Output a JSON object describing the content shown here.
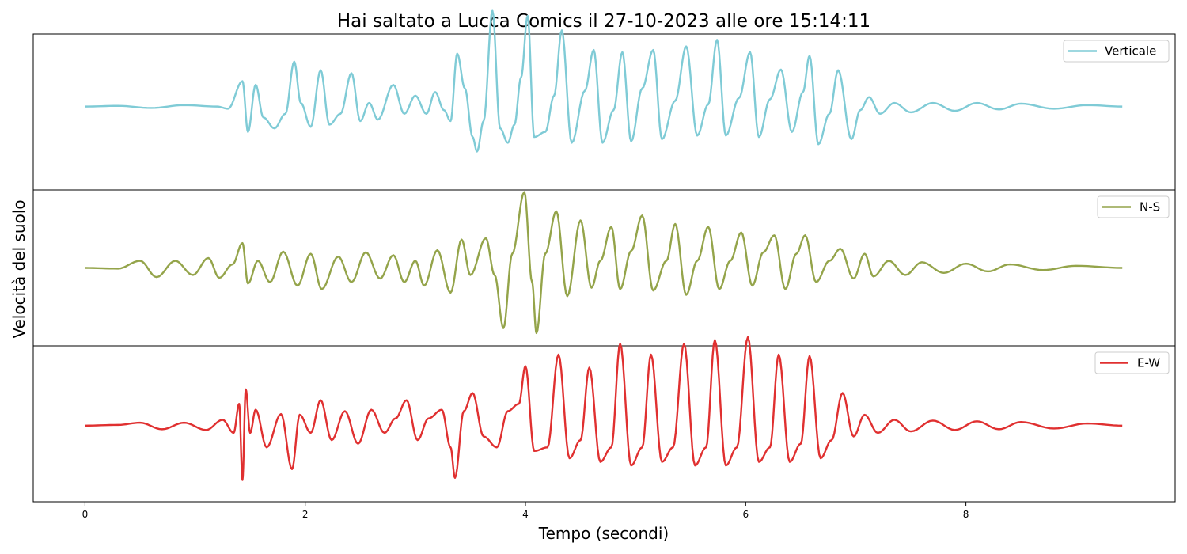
{
  "chart_data": {
    "type": "line",
    "title": "Hai saltato a Lucca Comics il 27-10-2023 alle ore 15:14:11",
    "xlabel": "Tempo (secondi)",
    "ylabel": "Velocità del suolo",
    "xlim": [
      -0.47,
      9.9
    ],
    "xticks": [
      0,
      2,
      4,
      6,
      8
    ],
    "xtick_labels": [
      "0",
      "2",
      "4",
      "6",
      "8"
    ],
    "grid": false,
    "legend_position": "top-right",
    "panels": [
      {
        "name": "Verticale",
        "color": "#7fcbd6",
        "ylim": [
          -1.15,
          1.0
        ],
        "peaks": [
          [
            0.0,
            0.0
          ],
          [
            0.3,
            0.01
          ],
          [
            0.6,
            -0.02
          ],
          [
            0.9,
            0.02
          ],
          [
            1.2,
            0.0
          ],
          [
            1.3,
            -0.03
          ],
          [
            1.43,
            0.35
          ],
          [
            1.48,
            -0.35
          ],
          [
            1.55,
            0.3
          ],
          [
            1.62,
            -0.15
          ],
          [
            1.72,
            -0.3
          ],
          [
            1.82,
            -0.1
          ],
          [
            1.9,
            0.62
          ],
          [
            1.96,
            0.05
          ],
          [
            2.05,
            -0.28
          ],
          [
            2.14,
            0.5
          ],
          [
            2.22,
            -0.25
          ],
          [
            2.32,
            -0.1
          ],
          [
            2.42,
            0.46
          ],
          [
            2.5,
            -0.2
          ],
          [
            2.58,
            0.05
          ],
          [
            2.66,
            -0.18
          ],
          [
            2.8,
            0.3
          ],
          [
            2.9,
            -0.1
          ],
          [
            3.0,
            0.15
          ],
          [
            3.1,
            -0.1
          ],
          [
            3.18,
            0.2
          ],
          [
            3.26,
            -0.05
          ],
          [
            3.32,
            -0.2
          ],
          [
            3.38,
            0.73
          ],
          [
            3.45,
            0.25
          ],
          [
            3.52,
            -0.42
          ],
          [
            3.56,
            -0.62
          ],
          [
            3.62,
            -0.2
          ],
          [
            3.7,
            1.32
          ],
          [
            3.77,
            -0.3
          ],
          [
            3.84,
            -0.5
          ],
          [
            3.9,
            -0.25
          ],
          [
            3.96,
            0.4
          ],
          [
            4.02,
            1.25
          ],
          [
            4.08,
            -0.42
          ],
          [
            4.18,
            -0.35
          ],
          [
            4.26,
            0.15
          ],
          [
            4.33,
            1.05
          ],
          [
            4.42,
            -0.5
          ],
          [
            4.54,
            0.22
          ],
          [
            4.62,
            0.78
          ],
          [
            4.7,
            -0.5
          ],
          [
            4.8,
            -0.05
          ],
          [
            4.88,
            0.75
          ],
          [
            4.96,
            -0.48
          ],
          [
            5.06,
            0.25
          ],
          [
            5.16,
            0.78
          ],
          [
            5.24,
            -0.45
          ],
          [
            5.36,
            0.08
          ],
          [
            5.46,
            0.83
          ],
          [
            5.56,
            -0.4
          ],
          [
            5.66,
            0.03
          ],
          [
            5.74,
            0.92
          ],
          [
            5.82,
            -0.4
          ],
          [
            5.94,
            0.12
          ],
          [
            6.04,
            0.75
          ],
          [
            6.12,
            -0.42
          ],
          [
            6.22,
            0.1
          ],
          [
            6.32,
            0.51
          ],
          [
            6.42,
            -0.35
          ],
          [
            6.52,
            0.2
          ],
          [
            6.58,
            0.7
          ],
          [
            6.66,
            -0.52
          ],
          [
            6.76,
            -0.1
          ],
          [
            6.84,
            0.5
          ],
          [
            6.96,
            -0.45
          ],
          [
            7.04,
            -0.05
          ],
          [
            7.12,
            0.13
          ],
          [
            7.22,
            -0.1
          ],
          [
            7.35,
            0.05
          ],
          [
            7.5,
            -0.08
          ],
          [
            7.7,
            0.05
          ],
          [
            7.9,
            -0.06
          ],
          [
            8.1,
            0.05
          ],
          [
            8.3,
            -0.04
          ],
          [
            8.5,
            0.04
          ],
          [
            8.8,
            -0.03
          ],
          [
            9.1,
            0.02
          ],
          [
            9.42,
            0.0
          ]
        ]
      },
      {
        "name": "N-S",
        "color": "#94a44a",
        "ylim": [
          -1.1,
          1.1
        ],
        "peaks": [
          [
            0.0,
            0.0
          ],
          [
            0.3,
            -0.01
          ],
          [
            0.5,
            0.1
          ],
          [
            0.65,
            -0.13
          ],
          [
            0.82,
            0.1
          ],
          [
            0.98,
            -0.1
          ],
          [
            1.12,
            0.14
          ],
          [
            1.22,
            -0.14
          ],
          [
            1.34,
            0.05
          ],
          [
            1.43,
            0.35
          ],
          [
            1.48,
            -0.22
          ],
          [
            1.57,
            0.1
          ],
          [
            1.68,
            -0.2
          ],
          [
            1.8,
            0.23
          ],
          [
            1.93,
            -0.25
          ],
          [
            2.05,
            0.2
          ],
          [
            2.15,
            -0.3
          ],
          [
            2.3,
            0.16
          ],
          [
            2.42,
            -0.2
          ],
          [
            2.55,
            0.22
          ],
          [
            2.68,
            -0.15
          ],
          [
            2.8,
            0.18
          ],
          [
            2.9,
            -0.2
          ],
          [
            3.0,
            0.1
          ],
          [
            3.08,
            -0.25
          ],
          [
            3.2,
            0.25
          ],
          [
            3.32,
            -0.35
          ],
          [
            3.42,
            0.4
          ],
          [
            3.5,
            -0.1
          ],
          [
            3.64,
            0.42
          ],
          [
            3.72,
            -0.1
          ],
          [
            3.8,
            -0.85
          ],
          [
            3.88,
            0.2
          ],
          [
            3.99,
            1.07
          ],
          [
            4.06,
            -0.2
          ],
          [
            4.1,
            -0.92
          ],
          [
            4.18,
            0.2
          ],
          [
            4.28,
            0.8
          ],
          [
            4.38,
            -0.4
          ],
          [
            4.5,
            0.67
          ],
          [
            4.6,
            -0.28
          ],
          [
            4.68,
            0.1
          ],
          [
            4.78,
            0.58
          ],
          [
            4.86,
            -0.3
          ],
          [
            4.96,
            0.24
          ],
          [
            5.06,
            0.74
          ],
          [
            5.16,
            -0.32
          ],
          [
            5.28,
            0.1
          ],
          [
            5.36,
            0.62
          ],
          [
            5.46,
            -0.38
          ],
          [
            5.56,
            0.1
          ],
          [
            5.66,
            0.58
          ],
          [
            5.76,
            -0.3
          ],
          [
            5.86,
            0.1
          ],
          [
            5.96,
            0.5
          ],
          [
            6.06,
            -0.25
          ],
          [
            6.16,
            0.22
          ],
          [
            6.26,
            0.46
          ],
          [
            6.36,
            -0.3
          ],
          [
            6.46,
            0.2
          ],
          [
            6.54,
            0.46
          ],
          [
            6.64,
            -0.2
          ],
          [
            6.76,
            0.1
          ],
          [
            6.86,
            0.27
          ],
          [
            6.98,
            -0.15
          ],
          [
            7.08,
            0.2
          ],
          [
            7.16,
            -0.12
          ],
          [
            7.3,
            0.1
          ],
          [
            7.45,
            -0.1
          ],
          [
            7.6,
            0.08
          ],
          [
            7.8,
            -0.07
          ],
          [
            8.0,
            0.06
          ],
          [
            8.2,
            -0.05
          ],
          [
            8.4,
            0.05
          ],
          [
            8.7,
            -0.03
          ],
          [
            9.0,
            0.03
          ],
          [
            9.42,
            0.0
          ]
        ]
      },
      {
        "name": "E-W",
        "color": "#e03030",
        "ylim": [
          -1.05,
          1.1
        ],
        "peaks": [
          [
            0.0,
            0.0
          ],
          [
            0.3,
            0.01
          ],
          [
            0.5,
            0.04
          ],
          [
            0.7,
            -0.05
          ],
          [
            0.9,
            0.04
          ],
          [
            1.1,
            -0.06
          ],
          [
            1.25,
            0.08
          ],
          [
            1.35,
            -0.1
          ],
          [
            1.4,
            0.3
          ],
          [
            1.43,
            -0.75
          ],
          [
            1.46,
            0.5
          ],
          [
            1.5,
            -0.1
          ],
          [
            1.55,
            0.22
          ],
          [
            1.65,
            -0.3
          ],
          [
            1.78,
            0.16
          ],
          [
            1.88,
            -0.6
          ],
          [
            1.95,
            0.15
          ],
          [
            2.05,
            -0.1
          ],
          [
            2.14,
            0.35
          ],
          [
            2.24,
            -0.2
          ],
          [
            2.36,
            0.2
          ],
          [
            2.48,
            -0.25
          ],
          [
            2.6,
            0.22
          ],
          [
            2.72,
            -0.1
          ],
          [
            2.82,
            0.1
          ],
          [
            2.92,
            0.35
          ],
          [
            3.02,
            -0.2
          ],
          [
            3.12,
            0.1
          ],
          [
            3.24,
            0.22
          ],
          [
            3.32,
            -0.3
          ],
          [
            3.36,
            -0.72
          ],
          [
            3.44,
            0.2
          ],
          [
            3.52,
            0.45
          ],
          [
            3.62,
            -0.15
          ],
          [
            3.74,
            -0.3
          ],
          [
            3.84,
            0.2
          ],
          [
            3.94,
            0.3
          ],
          [
            4.0,
            0.82
          ],
          [
            4.08,
            -0.35
          ],
          [
            4.2,
            -0.3
          ],
          [
            4.3,
            0.98
          ],
          [
            4.4,
            -0.45
          ],
          [
            4.5,
            -0.2
          ],
          [
            4.58,
            0.8
          ],
          [
            4.68,
            -0.5
          ],
          [
            4.78,
            -0.3
          ],
          [
            4.86,
            1.13
          ],
          [
            4.96,
            -0.55
          ],
          [
            5.06,
            -0.3
          ],
          [
            5.14,
            0.98
          ],
          [
            5.24,
            -0.5
          ],
          [
            5.34,
            -0.3
          ],
          [
            5.44,
            1.13
          ],
          [
            5.54,
            -0.55
          ],
          [
            5.64,
            -0.3
          ],
          [
            5.72,
            1.18
          ],
          [
            5.82,
            -0.55
          ],
          [
            5.92,
            -0.3
          ],
          [
            6.02,
            1.22
          ],
          [
            6.12,
            -0.5
          ],
          [
            6.22,
            -0.3
          ],
          [
            6.3,
            0.98
          ],
          [
            6.4,
            -0.5
          ],
          [
            6.5,
            -0.25
          ],
          [
            6.58,
            0.96
          ],
          [
            6.68,
            -0.45
          ],
          [
            6.78,
            -0.2
          ],
          [
            6.88,
            0.45
          ],
          [
            6.98,
            -0.15
          ],
          [
            7.08,
            0.15
          ],
          [
            7.2,
            -0.1
          ],
          [
            7.35,
            0.08
          ],
          [
            7.5,
            -0.08
          ],
          [
            7.7,
            0.07
          ],
          [
            7.9,
            -0.06
          ],
          [
            8.1,
            0.06
          ],
          [
            8.3,
            -0.05
          ],
          [
            8.5,
            0.05
          ],
          [
            8.8,
            -0.04
          ],
          [
            9.1,
            0.03
          ],
          [
            9.42,
            0.0
          ]
        ]
      }
    ]
  }
}
